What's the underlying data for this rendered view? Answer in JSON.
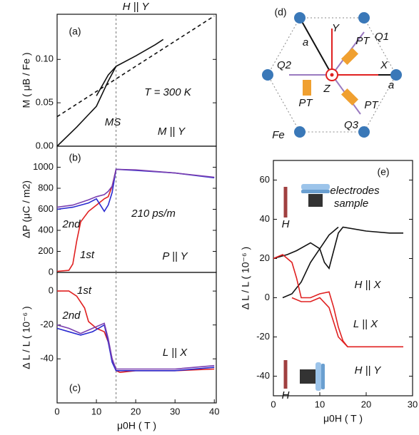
{
  "chart_data": [
    {
      "type": "line",
      "title": "H || Y",
      "ylabel": "M ( μB / Fe )",
      "xlim": [
        0,
        40.5
      ],
      "ylim": [
        0,
        0.152
      ],
      "yticks": [
        {
          "value": 0,
          "label": "0.00"
        },
        {
          "value": 0.05,
          "label": "0.05"
        },
        {
          "value": 0.1,
          "label": "0.10"
        }
      ],
      "vline": 15,
      "series": [
        {
          "color": "#111111",
          "dash": true,
          "x": [
            0,
            40
          ],
          "values": [
            0.034,
            0.15
          ]
        },
        {
          "color": "#111111",
          "x": [
            0,
            5,
            10,
            13,
            15,
            20,
            25,
            27
          ],
          "values": [
            0,
            0.022,
            0.046,
            0.075,
            0.092,
            0.104,
            0.117,
            0.123
          ]
        },
        {
          "color": "#111111",
          "x": [
            10,
            13,
            15
          ],
          "values": [
            0.058,
            0.082,
            0.092
          ]
        }
      ],
      "annotations": [
        "(a)",
        "T = 300 K",
        "M || Y",
        "MS"
      ]
    },
    {
      "type": "line",
      "ylabel": "ΔP (μC / m2)",
      "xlim": [
        0,
        40.5
      ],
      "ylim": [
        0,
        1200
      ],
      "yticks": [
        0,
        200,
        400,
        600,
        800,
        1000
      ],
      "vline": 15,
      "series": [
        {
          "color": "#e02020",
          "x": [
            0,
            3,
            4,
            5,
            6,
            8,
            10,
            12,
            13,
            14,
            15
          ],
          "values": [
            10,
            20,
            80,
            300,
            480,
            580,
            640,
            700,
            720,
            820,
            980
          ]
        },
        {
          "color": "#2a2ad0",
          "x": [
            0,
            4,
            8,
            10,
            11,
            12,
            13,
            14,
            15,
            20,
            30,
            40
          ],
          "values": [
            600,
            620,
            660,
            700,
            640,
            580,
            640,
            760,
            980,
            970,
            945,
            900
          ]
        },
        {
          "color": "#7a3fb0",
          "x": [
            0,
            4,
            8,
            10,
            12,
            13,
            14,
            15,
            20,
            30,
            40
          ],
          "values": [
            620,
            640,
            690,
            720,
            740,
            770,
            820,
            980,
            975,
            945,
            905
          ]
        }
      ],
      "annotations": [
        "(b)",
        "210 ps/m",
        "2nd",
        "1st",
        "P || Y"
      ]
    },
    {
      "type": "line",
      "ylabel": "Δ L / L ( 10⁻⁶ )",
      "xlabel": "μ0H ( T )",
      "xlim": [
        0,
        40.5
      ],
      "ylim": [
        -66,
        11
      ],
      "yticks": [
        0,
        -20,
        -40
      ],
      "xticks": [
        0,
        10,
        20,
        30,
        40
      ],
      "vline": 15,
      "series": [
        {
          "color": "#e02020",
          "x": [
            0,
            3,
            5,
            7,
            8,
            10,
            12,
            13,
            14,
            15,
            16,
            20,
            30,
            40
          ],
          "values": [
            0,
            0,
            -3,
            -10,
            -18,
            -22,
            -24,
            -30,
            -40,
            -47,
            -48,
            -47,
            -47,
            -46
          ]
        },
        {
          "color": "#2a2ad0",
          "x": [
            0,
            3,
            6,
            9,
            12,
            13,
            14,
            15,
            20,
            30,
            40
          ],
          "values": [
            -22,
            -24,
            -26,
            -24,
            -20,
            -30,
            -42,
            -47,
            -47,
            -47,
            -45
          ]
        },
        {
          "color": "#7a3fb0",
          "x": [
            0,
            3,
            6,
            9,
            12,
            13,
            14,
            15,
            20,
            30,
            40
          ],
          "values": [
            -20,
            -22,
            -25,
            -22,
            -19,
            -28,
            -40,
            -46,
            -46,
            -46,
            -44
          ]
        }
      ],
      "annotations": [
        "(c)",
        "1st",
        "2nd",
        "L || X"
      ]
    },
    {
      "type": "diagram",
      "labels": [
        "(d)",
        "Y",
        "X",
        "Z",
        "a",
        "a",
        "PT",
        "PT",
        "PT",
        "Q1",
        "Q2",
        "Q3",
        "Fe"
      ]
    },
    {
      "type": "line",
      "ylabel": "Δ L / L ( 10⁻⁶ )",
      "xlabel": "μ0H ( T )",
      "xlim": [
        0,
        30
      ],
      "ylim": [
        -50,
        70
      ],
      "yticks": [
        -40,
        -20,
        0,
        20,
        40,
        60
      ],
      "xticks": [
        0,
        10,
        20,
        30
      ],
      "series": [
        {
          "color": "#111111",
          "x": [
            0,
            3,
            5,
            8,
            10,
            11,
            12,
            13,
            14,
            15,
            20,
            25,
            28
          ],
          "values": [
            20,
            22,
            24,
            28,
            25,
            18,
            15,
            24,
            33,
            36,
            34,
            33,
            33
          ]
        },
        {
          "color": "#111111",
          "x": [
            2,
            4,
            6,
            8,
            10,
            12,
            14
          ],
          "values": [
            0,
            2,
            8,
            18,
            25,
            32,
            36
          ]
        },
        {
          "color": "#e02020",
          "x": [
            0,
            2,
            4,
            5,
            6,
            8,
            10,
            12,
            13,
            14,
            15,
            16,
            20,
            25,
            28
          ],
          "values": [
            20,
            22,
            18,
            10,
            0,
            0,
            2,
            3,
            -5,
            -15,
            -22,
            -25,
            -25,
            -25,
            -25
          ]
        },
        {
          "color": "#e02020",
          "x": [
            4,
            6,
            8,
            10,
            12,
            14,
            16
          ],
          "values": [
            0,
            -2,
            -2,
            0,
            -5,
            -20,
            -25
          ]
        }
      ],
      "annotations": [
        "(e)",
        "electrodes",
        "sample",
        "H",
        "H || X",
        "L || X",
        "H || Y",
        "H"
      ]
    }
  ]
}
